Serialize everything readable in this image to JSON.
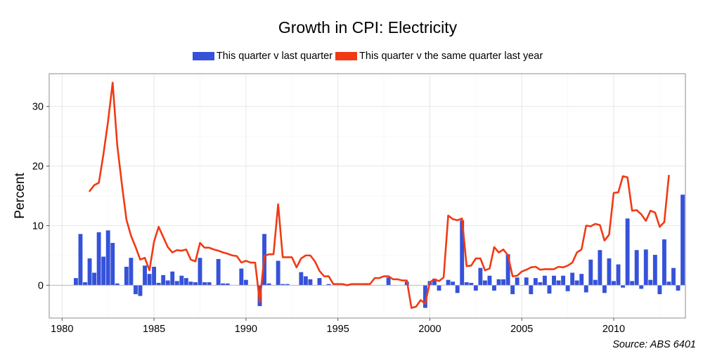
{
  "chart_data": {
    "type": "bar+line",
    "title": "Growth in CPI: Electricity",
    "ylabel": "Percent",
    "xlabel": "",
    "xlim": [
      1979.3,
      2013.9
    ],
    "ylim": [
      -5.5,
      35.5
    ],
    "x_ticks": [
      1980,
      1985,
      1990,
      1995,
      2000,
      2005,
      2010
    ],
    "x_tick_labels": [
      "1980",
      "1985",
      "1990",
      "1995",
      "2000",
      "2005",
      "2010"
    ],
    "y_ticks": [
      0,
      10,
      20,
      30
    ],
    "y_tick_labels": [
      "0",
      "10",
      "20",
      "30"
    ],
    "grid": true,
    "legend_position": "top",
    "source": "Source: ABS 6401",
    "series": [
      {
        "name": "This quarter v last quarter",
        "kind": "bar",
        "color": "#3652d9",
        "start": 1980.75,
        "step": 0.25,
        "values": [
          1.2,
          8.6,
          0.5,
          4.5,
          2.1,
          8.9,
          4.8,
          9.2,
          7.1,
          0.3,
          0.0,
          3.1,
          4.6,
          -1.5,
          -1.8,
          3.3,
          1.9,
          3.1,
          0.4,
          1.7,
          0.8,
          2.3,
          0.7,
          1.6,
          1.2,
          0.6,
          0.5,
          4.6,
          0.5,
          0.5,
          0.0,
          4.4,
          0.3,
          0.3,
          0.0,
          0.0,
          2.8,
          0.9,
          0.0,
          0.0,
          -3.5,
          8.6,
          0.3,
          0.0,
          4.1,
          0.2,
          0.2,
          0.0,
          0.0,
          2.2,
          1.5,
          1.0,
          0.0,
          1.2,
          0.0,
          0.2,
          0.0,
          0.0,
          0.0,
          0.1,
          0.0,
          0.0,
          0.0,
          0.1,
          0.0,
          0.0,
          0.0,
          0.0,
          1.3,
          0.0,
          0.0,
          0.0,
          0.6,
          0.0,
          0.0,
          0.0,
          -3.8,
          0.7,
          1.1,
          -0.9,
          0.0,
          0.9,
          0.6,
          -1.3,
          10.9,
          0.5,
          0.4,
          -0.9,
          2.9,
          0.8,
          1.6,
          -0.9,
          1.0,
          1.0,
          5.2,
          -1.5,
          1.3,
          0.0,
          1.3,
          -1.5,
          1.2,
          0.5,
          1.6,
          -1.4,
          1.6,
          0.8,
          1.6,
          -1.0,
          2.1,
          0.8,
          1.9,
          -1.2,
          4.3,
          0.9,
          5.9,
          -1.3,
          4.5,
          0.7,
          3.5,
          -0.4,
          11.2,
          0.7,
          5.9,
          -0.6,
          6.0,
          0.9,
          5.1,
          -1.5,
          7.7,
          0.6,
          2.9,
          -0.9,
          15.2
        ]
      },
      {
        "name": "This quarter v the same quarter last year",
        "kind": "line",
        "color": "#f13a14",
        "start": 1981.5,
        "step": 0.25,
        "values": [
          15.8,
          16.8,
          17.2,
          22.0,
          27.5,
          34.0,
          23.5,
          17.0,
          11.0,
          8.3,
          6.4,
          4.3,
          4.6,
          2.5,
          7.3,
          9.8,
          8.1,
          6.4,
          5.5,
          5.9,
          5.8,
          6.0,
          4.3,
          4.0,
          7.1,
          6.3,
          6.3,
          6.0,
          5.8,
          5.5,
          5.3,
          5.0,
          4.9,
          3.8,
          4.1,
          3.8,
          3.8,
          -2.8,
          4.9,
          5.2,
          5.2,
          13.6,
          4.7,
          4.7,
          4.7,
          3.0,
          4.5,
          5.0,
          5.0,
          4.0,
          2.4,
          1.5,
          1.5,
          0.2,
          0.2,
          0.2,
          0.0,
          0.2,
          0.2,
          0.2,
          0.2,
          0.2,
          1.2,
          1.2,
          1.5,
          1.5,
          1.0,
          1.0,
          0.8,
          0.8,
          -3.8,
          -3.6,
          -2.5,
          -3.1,
          0.5,
          1.0,
          0.7,
          1.3,
          11.7,
          11.1,
          10.9,
          11.2,
          3.2,
          3.3,
          4.5,
          4.5,
          2.5,
          2.8,
          6.4,
          5.5,
          6.0,
          5.0,
          1.5,
          1.6,
          2.3,
          2.6,
          3.0,
          3.1,
          2.6,
          2.7,
          2.7,
          2.7,
          3.1,
          3.0,
          3.3,
          3.8,
          5.5,
          6.0,
          10.0,
          9.9,
          10.3,
          10.1,
          7.5,
          8.5,
          15.5,
          15.6,
          18.3,
          18.1,
          12.5,
          12.6,
          11.9,
          10.8,
          12.5,
          12.2,
          9.8,
          10.6,
          18.4
        ]
      }
    ]
  }
}
